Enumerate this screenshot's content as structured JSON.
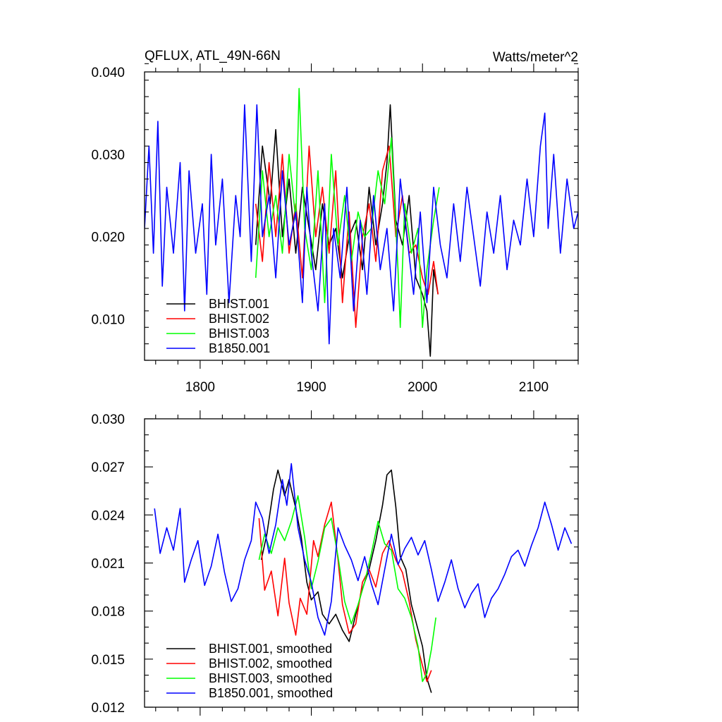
{
  "chart_data": [
    {
      "type": "line",
      "title_left": "QFLUX, ATL_49N-66N",
      "title_right": "Watts/meter^2",
      "xlim": [
        1750,
        2140
      ],
      "ylim": [
        0.005,
        0.04
      ],
      "xticks": [
        1800,
        1900,
        2000,
        2100
      ],
      "xtick_labels": [
        "1800",
        "1900",
        "2000",
        "2100"
      ],
      "yticks": [
        0.01,
        0.02,
        0.03,
        0.04
      ],
      "ytick_labels": [
        "0.010",
        "0.020",
        "0.030",
        "0.040"
      ],
      "legend_position": "bottom-left",
      "series": [
        {
          "name": "BHIST.001",
          "color": "#000000",
          "x": [
            1850,
            1856,
            1863,
            1868,
            1874,
            1880,
            1886,
            1892,
            1898,
            1904,
            1910,
            1916,
            1922,
            1928,
            1934,
            1940,
            1946,
            1952,
            1958,
            1964,
            1968,
            1971,
            1976,
            1982,
            1988,
            1994,
            2000,
            2004,
            2007,
            2010,
            2014
          ],
          "y": [
            0.019,
            0.031,
            0.024,
            0.033,
            0.02,
            0.027,
            0.018,
            0.026,
            0.021,
            0.016,
            0.024,
            0.019,
            0.021,
            0.015,
            0.02,
            0.022,
            0.016,
            0.026,
            0.019,
            0.024,
            0.029,
            0.036,
            0.022,
            0.019,
            0.025,
            0.015,
            0.013,
            0.011,
            0.0055,
            0.016,
            0.013
          ]
        },
        {
          "name": "BHIST.002",
          "color": "#ff0000",
          "x": [
            1850,
            1856,
            1862,
            1868,
            1874,
            1880,
            1886,
            1892,
            1898,
            1904,
            1910,
            1916,
            1922,
            1928,
            1934,
            1940,
            1946,
            1952,
            1958,
            1964,
            1970,
            1976,
            1982,
            1988,
            1994,
            2000,
            2005,
            2010,
            2014
          ],
          "y": [
            0.024,
            0.017,
            0.029,
            0.02,
            0.03,
            0.018,
            0.024,
            0.015,
            0.031,
            0.02,
            0.026,
            0.018,
            0.028,
            0.012,
            0.023,
            0.009,
            0.02,
            0.024,
            0.017,
            0.028,
            0.031,
            0.02,
            0.025,
            0.018,
            0.019,
            0.015,
            0.013,
            0.017,
            0.013
          ]
        },
        {
          "name": "BHIST.003",
          "color": "#00ff00",
          "x": [
            1850,
            1856,
            1862,
            1868,
            1874,
            1880,
            1886,
            1889,
            1894,
            1900,
            1906,
            1912,
            1918,
            1924,
            1930,
            1936,
            1942,
            1948,
            1954,
            1960,
            1966,
            1972,
            1978,
            1980,
            1984,
            1990,
            1996,
            2000,
            2004,
            2010,
            2015
          ],
          "y": [
            0.015,
            0.028,
            0.02,
            0.025,
            0.018,
            0.03,
            0.022,
            0.038,
            0.021,
            0.016,
            0.028,
            0.012,
            0.03,
            0.019,
            0.025,
            0.017,
            0.023,
            0.02,
            0.021,
            0.028,
            0.024,
            0.032,
            0.016,
            0.009,
            0.024,
            0.018,
            0.021,
            0.009,
            0.016,
            0.022,
            0.026
          ]
        },
        {
          "name": "B1850.001",
          "color": "#0000ff",
          "x": [
            1750,
            1754,
            1758,
            1762,
            1766,
            1770,
            1776,
            1782,
            1786,
            1790,
            1796,
            1802,
            1806,
            1810,
            1814,
            1820,
            1826,
            1832,
            1836,
            1840,
            1846,
            1851,
            1856,
            1862,
            1868,
            1874,
            1880,
            1886,
            1892,
            1896,
            1900,
            1906,
            1912,
            1916,
            1920,
            1926,
            1932,
            1938,
            1944,
            1950,
            1956,
            1962,
            1968,
            1974,
            1980,
            1986,
            1992,
            1998,
            2004,
            2010,
            2016,
            2022,
            2028,
            2034,
            2040,
            2046,
            2052,
            2058,
            2064,
            2070,
            2076,
            2082,
            2088,
            2094,
            2100,
            2106,
            2110,
            2113,
            2118,
            2124,
            2130,
            2136,
            2140
          ],
          "y": [
            0.021,
            0.031,
            0.018,
            0.034,
            0.014,
            0.026,
            0.018,
            0.029,
            0.011,
            0.028,
            0.018,
            0.024,
            0.013,
            0.03,
            0.019,
            0.027,
            0.012,
            0.025,
            0.02,
            0.036,
            0.017,
            0.036,
            0.02,
            0.025,
            0.015,
            0.028,
            0.019,
            0.023,
            0.012,
            0.026,
            0.018,
            0.011,
            0.024,
            0.007,
            0.021,
            0.015,
            0.026,
            0.011,
            0.022,
            0.013,
            0.025,
            0.016,
            0.021,
            0.011,
            0.027,
            0.02,
            0.013,
            0.023,
            0.012,
            0.026,
            0.019,
            0.015,
            0.024,
            0.017,
            0.026,
            0.02,
            0.014,
            0.023,
            0.018,
            0.025,
            0.016,
            0.022,
            0.019,
            0.027,
            0.02,
            0.031,
            0.035,
            0.021,
            0.03,
            0.018,
            0.027,
            0.021,
            0.023
          ]
        }
      ]
    },
    {
      "type": "line",
      "xlim": [
        1750,
        2140
      ],
      "ylim": [
        0.012,
        0.03
      ],
      "xticks": [
        1800,
        1900,
        2000,
        2100
      ],
      "yticks": [
        0.012,
        0.015,
        0.018,
        0.021,
        0.024,
        0.027,
        0.03
      ],
      "ytick_labels": [
        "0.012",
        "0.015",
        "0.018",
        "0.021",
        "0.024",
        "0.027",
        "0.030"
      ],
      "legend_position": "bottom-left",
      "series": [
        {
          "name": "BHIST.001, smoothed",
          "color": "#000000",
          "x": [
            1855,
            1860,
            1866,
            1870,
            1876,
            1880,
            1886,
            1891,
            1896,
            1900,
            1906,
            1910,
            1916,
            1922,
            1928,
            1934,
            1940,
            1946,
            1952,
            1958,
            1964,
            1968,
            1972,
            1976,
            1980,
            1985,
            1990,
            1995,
            2000,
            2004,
            2008
          ],
          "y": [
            0.0212,
            0.0228,
            0.0256,
            0.0268,
            0.0252,
            0.0262,
            0.0244,
            0.0226,
            0.0198,
            0.0187,
            0.0192,
            0.0178,
            0.0172,
            0.0178,
            0.0168,
            0.0161,
            0.0178,
            0.0194,
            0.0206,
            0.0224,
            0.0246,
            0.0265,
            0.0268,
            0.0245,
            0.0214,
            0.0206,
            0.0184,
            0.0171,
            0.0158,
            0.0138,
            0.0129
          ]
        },
        {
          "name": "BHIST.002, smoothed",
          "color": "#ff0000",
          "x": [
            1853,
            1858,
            1864,
            1870,
            1876,
            1880,
            1886,
            1890,
            1896,
            1902,
            1906,
            1912,
            1918,
            1924,
            1928,
            1934,
            1940,
            1946,
            1952,
            1958,
            1964,
            1970,
            1976,
            1982,
            1988,
            1994,
            2000,
            2004,
            2008
          ],
          "y": [
            0.0238,
            0.0193,
            0.0205,
            0.0177,
            0.0213,
            0.0185,
            0.0165,
            0.0188,
            0.0178,
            0.0224,
            0.0214,
            0.0234,
            0.0248,
            0.0212,
            0.0184,
            0.0166,
            0.0172,
            0.0198,
            0.0206,
            0.0195,
            0.0216,
            0.0224,
            0.0212,
            0.0204,
            0.0186,
            0.0162,
            0.0146,
            0.0136,
            0.0143
          ]
        },
        {
          "name": "BHIST.003, smoothed",
          "color": "#00ff00",
          "x": [
            1853,
            1858,
            1864,
            1870,
            1876,
            1882,
            1888,
            1894,
            1900,
            1906,
            1912,
            1918,
            1924,
            1930,
            1936,
            1942,
            1948,
            1954,
            1960,
            1966,
            1972,
            1978,
            1984,
            1990,
            1996,
            2000,
            2004,
            2008,
            2012
          ],
          "y": [
            0.0212,
            0.0228,
            0.0216,
            0.0232,
            0.0224,
            0.0236,
            0.0252,
            0.0226,
            0.0194,
            0.0211,
            0.0232,
            0.0238,
            0.0214,
            0.0186,
            0.0172,
            0.0184,
            0.0198,
            0.0216,
            0.0236,
            0.0222,
            0.0218,
            0.0194,
            0.0188,
            0.0176,
            0.0158,
            0.0136,
            0.0141,
            0.0156,
            0.0176
          ]
        },
        {
          "name": "B1850.001, smoothed",
          "color": "#0000ff",
          "x": [
            1759,
            1764,
            1770,
            1776,
            1782,
            1786,
            1792,
            1798,
            1804,
            1810,
            1816,
            1822,
            1828,
            1834,
            1840,
            1846,
            1850,
            1856,
            1862,
            1868,
            1874,
            1878,
            1882,
            1888,
            1894,
            1900,
            1906,
            1912,
            1918,
            1924,
            1930,
            1936,
            1942,
            1948,
            1954,
            1960,
            1966,
            1972,
            1978,
            1984,
            1990,
            1996,
            2002,
            2008,
            2014,
            2020,
            2026,
            2032,
            2038,
            2044,
            2050,
            2056,
            2062,
            2068,
            2074,
            2080,
            2086,
            2092,
            2098,
            2104,
            2110,
            2116,
            2122,
            2128,
            2134
          ],
          "y": [
            0.0244,
            0.0216,
            0.0232,
            0.0218,
            0.0244,
            0.0198,
            0.0212,
            0.0224,
            0.0196,
            0.0208,
            0.0228,
            0.0204,
            0.0186,
            0.0194,
            0.0212,
            0.0224,
            0.0248,
            0.0238,
            0.0216,
            0.0234,
            0.0262,
            0.0246,
            0.0272,
            0.0232,
            0.0212,
            0.0198,
            0.0176,
            0.0165,
            0.0186,
            0.0232,
            0.0221,
            0.0212,
            0.0199,
            0.0214,
            0.0197,
            0.0184,
            0.0206,
            0.0228,
            0.0209,
            0.0219,
            0.0226,
            0.0215,
            0.0224,
            0.0206,
            0.0186,
            0.0198,
            0.0212,
            0.0194,
            0.0182,
            0.0191,
            0.0197,
            0.0176,
            0.0188,
            0.0194,
            0.0203,
            0.0214,
            0.0218,
            0.0208,
            0.0221,
            0.0232,
            0.0248,
            0.0234,
            0.0218,
            0.0232,
            0.0222
          ]
        }
      ]
    }
  ]
}
